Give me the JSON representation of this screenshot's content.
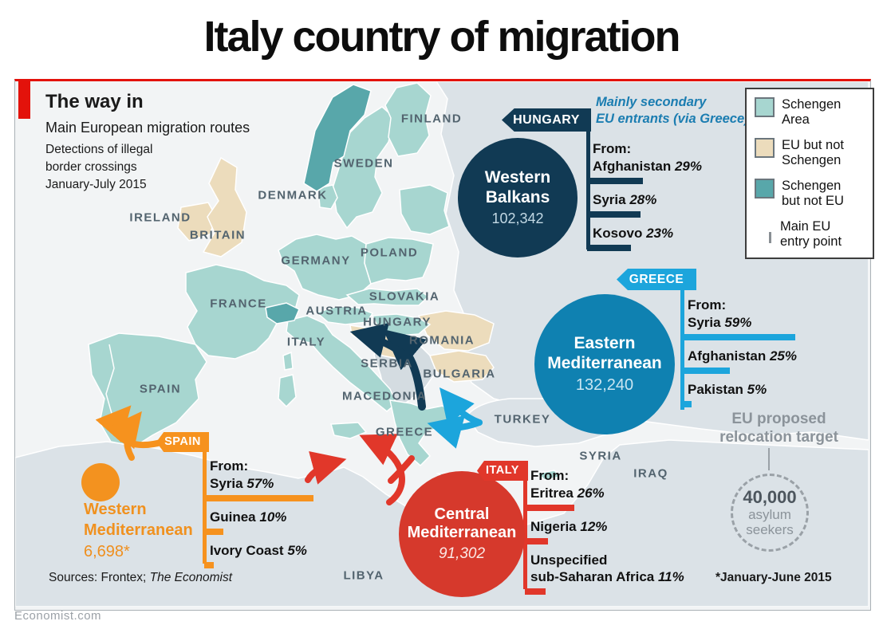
{
  "page_title": "Italy country of migration",
  "brand": {
    "site": "Economist.com",
    "accent_red": "#e3120b"
  },
  "panel": {
    "heading": "The way in",
    "subheading": "Main European migration routes",
    "note_line1": "Detections of illegal",
    "note_line2": "border crossings",
    "note_line3": "January-July 2015",
    "sources_prefix": "Sources: Frontex; ",
    "sources_italic": "The Economist",
    "footnote": "*January-June 2015"
  },
  "legend": {
    "items": [
      {
        "label_line1": "Schengen",
        "label_line2": "Area",
        "color": "#a7d6d0"
      },
      {
        "label_line1": "EU but not",
        "label_line2": "Schengen",
        "color": "#ecdcbc"
      },
      {
        "label_line1": "Schengen",
        "label_line2": "but not EU",
        "color": "#58a7aa"
      },
      {
        "label_line1": "Main EU",
        "label_line2": "entry point",
        "color": "#898f94"
      }
    ]
  },
  "routes": [
    {
      "tag": "HUNGARY",
      "name_line1": "Western",
      "name_line2": "Balkans",
      "total": "102,342",
      "color": "#113a54",
      "tag_color": "#113a54",
      "note_line1": "Mainly secondary",
      "note_line2": "EU entrants (via Greece)",
      "from_label": "From:",
      "origins": [
        {
          "name": "Afghanistan",
          "pct": 29,
          "pct_label": "29%"
        },
        {
          "name": "Syria",
          "pct": 28,
          "pct_label": "28%"
        },
        {
          "name": "Kosovo",
          "pct": 23,
          "pct_label": "23%"
        }
      ]
    },
    {
      "tag": "GREECE",
      "name_line1": "Eastern",
      "name_line2": "Mediterranean",
      "total": "132,240",
      "color": "#0f81b1",
      "tag_color": "#1ca5dc",
      "from_label": "From:",
      "origins": [
        {
          "name": "Syria",
          "pct": 59,
          "pct_label": "59%"
        },
        {
          "name": "Afghanistan",
          "pct": 25,
          "pct_label": "25%"
        },
        {
          "name": "Pakistan",
          "pct": 5,
          "pct_label": "5%"
        }
      ]
    },
    {
      "tag": "ITALY",
      "name_line1": "Central",
      "name_line2": "Mediterranean",
      "total": "91,302",
      "color": "#d6392c",
      "tag_color": "#e1372a",
      "from_label": "From:",
      "origins": [
        {
          "name": "Eritrea",
          "pct": 26,
          "pct_label": "26%"
        },
        {
          "name": "Nigeria",
          "pct": 12,
          "pct_label": "12%"
        },
        {
          "name": "Unspecified sub-Saharan Africa",
          "name_line1": "Unspecified",
          "name_line2": "sub-Saharan Africa",
          "pct": 11,
          "pct_label": "11%"
        }
      ]
    },
    {
      "tag": "SPAIN",
      "name_line1": "Western",
      "name_line2": "Mediterranean",
      "total": "6,698*",
      "color": "#f3921f",
      "tag_color": "#f6921e",
      "from_label": "From:",
      "origins": [
        {
          "name": "Syria",
          "pct": 57,
          "pct_label": "57%"
        },
        {
          "name": "Guinea",
          "pct": 10,
          "pct_label": "10%"
        },
        {
          "name": "Ivory Coast",
          "pct": 5,
          "pct_label": "5%"
        }
      ]
    }
  ],
  "relocation": {
    "title_line1": "EU proposed",
    "title_line2": "relocation target",
    "value": "40,000",
    "label_line1": "asylum",
    "label_line2": "seekers"
  },
  "map": {
    "labels": [
      "FINLAND",
      "SWEDEN",
      "DENMARK",
      "IRELAND",
      "BRITAIN",
      "GERMANY",
      "POLAND",
      "FRANCE",
      "AUSTRIA",
      "SLOVAKIA",
      "HUNGARY",
      "ITALY",
      "ROMANIA",
      "SERBIA",
      "BULGARIA",
      "MACEDONIA",
      "GREECE",
      "TURKEY",
      "SPAIN",
      "SYRIA",
      "IRAQ",
      "LIBYA"
    ]
  },
  "chart_data": {
    "type": "map-flow",
    "title": "The way in — Main European migration routes",
    "subtitle": "Detections of illegal border crossings, January-July 2015",
    "routes": [
      {
        "route": "Western Balkans",
        "entry_point": "HUNGARY",
        "detections": 102342,
        "note": "Mainly secondary EU entrants (via Greece)",
        "origins": [
          {
            "country": "Afghanistan",
            "pct": 29
          },
          {
            "country": "Syria",
            "pct": 28
          },
          {
            "country": "Kosovo",
            "pct": 23
          }
        ]
      },
      {
        "route": "Eastern Mediterranean",
        "entry_point": "GREECE",
        "detections": 132240,
        "origins": [
          {
            "country": "Syria",
            "pct": 59
          },
          {
            "country": "Afghanistan",
            "pct": 25
          },
          {
            "country": "Pakistan",
            "pct": 5
          }
        ]
      },
      {
        "route": "Central Mediterranean",
        "entry_point": "ITALY",
        "detections": 91302,
        "origins": [
          {
            "country": "Eritrea",
            "pct": 26
          },
          {
            "country": "Nigeria",
            "pct": 12
          },
          {
            "country": "Unspecified sub-Saharan Africa",
            "pct": 11
          }
        ]
      },
      {
        "route": "Western Mediterranean",
        "entry_point": "SPAIN",
        "detections": 6698,
        "detections_period": "January-June 2015",
        "origins": [
          {
            "country": "Syria",
            "pct": 57
          },
          {
            "country": "Guinea",
            "pct": 10
          },
          {
            "country": "Ivory Coast",
            "pct": 5
          }
        ]
      }
    ],
    "relocation_target": {
      "label": "EU proposed relocation target",
      "value": 40000,
      "unit": "asylum seekers"
    },
    "legend": [
      "Schengen Area",
      "EU but not Schengen",
      "Schengen but not EU",
      "Main EU entry point"
    ]
  }
}
